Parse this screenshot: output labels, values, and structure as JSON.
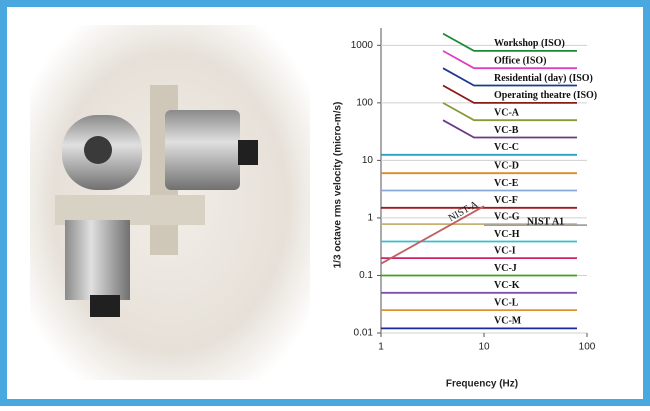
{
  "chart_data": {
    "type": "line",
    "x_label": "Frequency (Hz)",
    "y_label": "1/3 octave rms velocity (micro-m/s)",
    "xlim": [
      1,
      100
    ],
    "ylim": [
      0.01,
      2000
    ],
    "xticks": [
      1,
      10,
      100
    ],
    "yticks": [
      1000,
      100,
      10,
      1,
      0.1,
      0.01
    ],
    "log_x": true,
    "log_y": true,
    "grid": true,
    "series": [
      {
        "name": "Workshop (ISO)",
        "color": "#1a8a3a",
        "x": [
          4,
          8,
          80
        ],
        "values": [
          1600,
          800,
          800
        ]
      },
      {
        "name": "Office (ISO)",
        "color": "#e040c0",
        "x": [
          4,
          8,
          80
        ],
        "values": [
          800,
          400,
          400
        ]
      },
      {
        "name": "Residential (day) (ISO)",
        "color": "#1f3a8a",
        "x": [
          4,
          8,
          80
        ],
        "values": [
          400,
          200,
          200
        ]
      },
      {
        "name": "Operating theatre (ISO)",
        "color": "#8b1a1a",
        "x": [
          4,
          8,
          80
        ],
        "values": [
          200,
          100,
          100
        ]
      },
      {
        "name": "VC-A",
        "color": "#8a9a3a",
        "x": [
          4,
          8,
          80
        ],
        "values": [
          100,
          50,
          50
        ]
      },
      {
        "name": "VC-B",
        "color": "#6a3a8a",
        "x": [
          4,
          8,
          80
        ],
        "values": [
          50,
          25,
          25
        ]
      },
      {
        "name": "VC-C",
        "color": "#2aa0c0",
        "x": [
          1,
          80
        ],
        "values": [
          12.5,
          12.5
        ]
      },
      {
        "name": "VC-D",
        "color": "#e08a20",
        "x": [
          1,
          80
        ],
        "values": [
          6,
          6
        ]
      },
      {
        "name": "VC-E",
        "color": "#8aa8d8",
        "x": [
          1,
          80
        ],
        "values": [
          3,
          3
        ]
      },
      {
        "name": "VC-F",
        "color": "#a01818",
        "x": [
          1,
          80
        ],
        "values": [
          1.5,
          1.5
        ]
      },
      {
        "name": "VC-G",
        "color": "#c8b070",
        "x": [
          1,
          80
        ],
        "values": [
          0.78,
          0.78
        ]
      },
      {
        "name": "VC-H",
        "color": "#30c0d0",
        "x": [
          1,
          80
        ],
        "values": [
          0.39,
          0.39
        ]
      },
      {
        "name": "VC-I",
        "color": "#d0206a",
        "x": [
          1,
          80
        ],
        "values": [
          0.2,
          0.2
        ]
      },
      {
        "name": "VC-J",
        "color": "#40a020",
        "x": [
          1,
          80
        ],
        "values": [
          0.1,
          0.1
        ]
      },
      {
        "name": "VC-K",
        "color": "#8050b0",
        "x": [
          1,
          80
        ],
        "values": [
          0.05,
          0.05
        ]
      },
      {
        "name": "VC-L",
        "color": "#e09030",
        "x": [
          1,
          80
        ],
        "values": [
          0.025,
          0.025
        ]
      },
      {
        "name": "VC-M",
        "color": "#1a2a9a",
        "x": [
          1,
          80
        ],
        "values": [
          0.012,
          0.012
        ]
      },
      {
        "name": "NIST-A",
        "color": "#c06060",
        "x": [
          1,
          10
        ],
        "values": [
          0.16,
          1.6
        ]
      },
      {
        "name": "NIST A1",
        "color": "#a0a0a0",
        "x": [
          10,
          100
        ],
        "values": [
          0.75,
          0.75
        ]
      }
    ]
  }
}
